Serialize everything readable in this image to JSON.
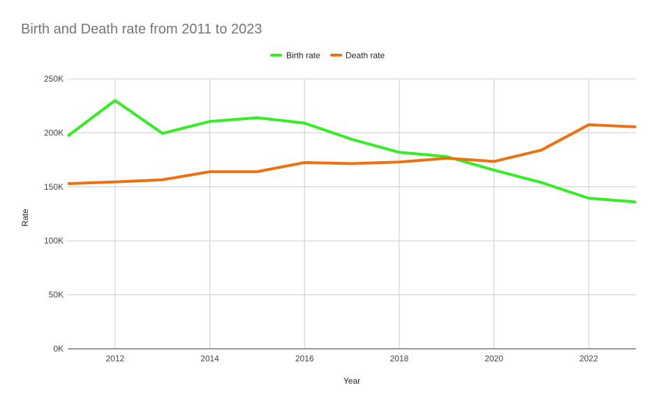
{
  "chart_data": {
    "type": "line",
    "title": "Birth and Death rate from 2011 to 2023",
    "xlabel": "Year",
    "ylabel": "Rate",
    "x": [
      2011,
      2012,
      2013,
      2014,
      2015,
      2016,
      2017,
      2018,
      2019,
      2020,
      2021,
      2022,
      2023
    ],
    "xlim": [
      2011,
      2023
    ],
    "x_ticks": [
      "2012",
      "2014",
      "2016",
      "2018",
      "2020",
      "2022"
    ],
    "ylim": [
      0,
      250000
    ],
    "y_ticks": [
      "0K",
      "50K",
      "100K",
      "150K",
      "200K",
      "250K"
    ],
    "grid": true,
    "legend_position": "top",
    "series": [
      {
        "name": "Birth rate",
        "color": "#33ee22",
        "values": [
          197000,
          230000,
          199500,
          210500,
          214000,
          209000,
          194000,
          182000,
          178000,
          165500,
          154000,
          139500,
          136000
        ]
      },
      {
        "name": "Death rate",
        "color": "#ee7011",
        "values": [
          153000,
          154500,
          156500,
          164000,
          164000,
          172500,
          171500,
          173000,
          176500,
          173500,
          184000,
          207500,
          205500
        ]
      }
    ]
  }
}
